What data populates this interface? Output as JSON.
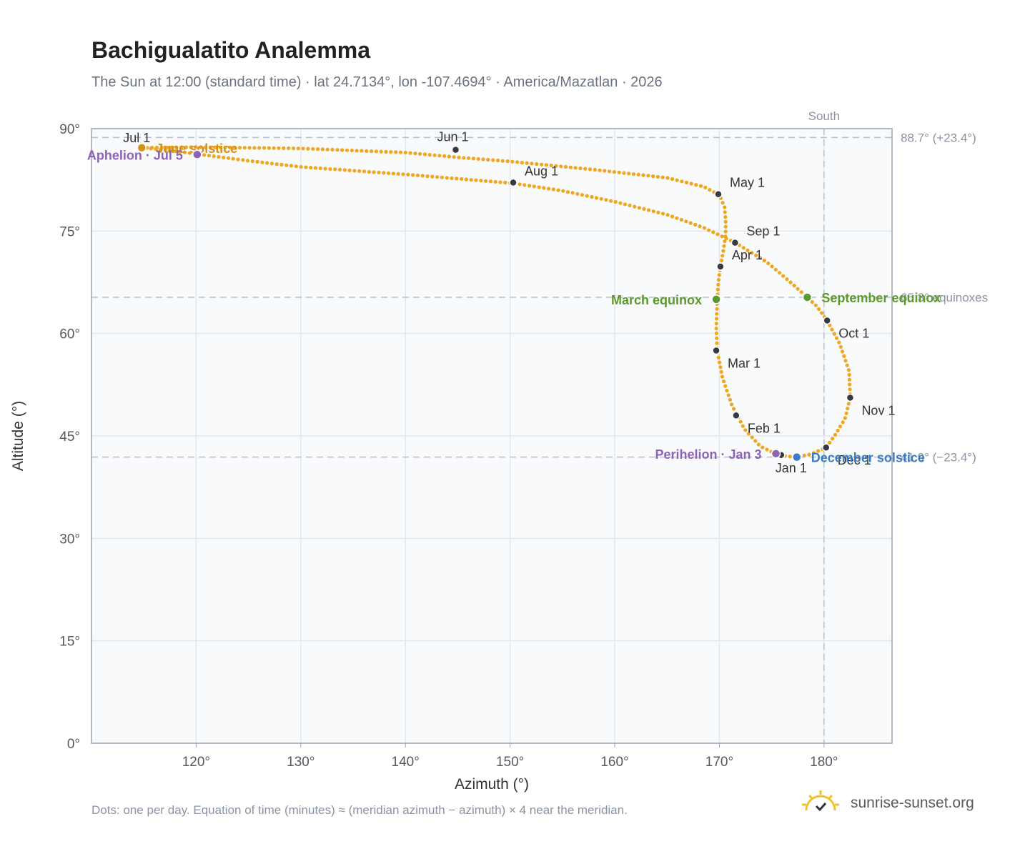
{
  "header": {
    "title": "Bachigualatito Analemma",
    "subtitle": "The Sun at 12:00 (standard time) · lat 24.7134°, lon -107.4694° · America/Mazatlan · 2026"
  },
  "footer": {
    "note": "Dots: one per day. Equation of time (minutes) ≈ (meridian azimuth − azimuth) × 4 near the meridian.",
    "brand": "sunrise-sunset.org"
  },
  "colors": {
    "curve": "#f2a51f",
    "month_marker": "#343a44",
    "equinox": "#5a9a2e",
    "solstice_june": "#d4921a",
    "solstice_december": "#3a7cc6",
    "apsis": "#8e62b5",
    "reference_line": "#b8c0cc",
    "plot_background": "#f8fafc",
    "grid": "#e4e8ee",
    "axis": "#9aa4b2"
  },
  "chart_data": {
    "type": "scatter",
    "title": "Bachigualatito Analemma",
    "xlabel": "Azimuth (°)",
    "ylabel": "Altitude (°)",
    "xlim": [
      110,
      186.5
    ],
    "ylim": [
      0,
      90
    ],
    "x_ticks": [
      {
        "value": 120,
        "label": "120°"
      },
      {
        "value": 130,
        "label": "130°"
      },
      {
        "value": 140,
        "label": "140°"
      },
      {
        "value": 150,
        "label": "150°"
      },
      {
        "value": 160,
        "label": "160°"
      },
      {
        "value": 170,
        "label": "170°"
      },
      {
        "value": 180,
        "label": "180°"
      }
    ],
    "y_ticks": [
      {
        "value": 0,
        "label": "0°"
      },
      {
        "value": 15,
        "label": "15°"
      },
      {
        "value": 30,
        "label": "30°"
      },
      {
        "value": 45,
        "label": "45°"
      },
      {
        "value": 60,
        "label": "60°"
      },
      {
        "value": 75,
        "label": "75°"
      },
      {
        "value": 90,
        "label": "90°"
      }
    ],
    "grid": true,
    "reference_lines": [
      {
        "orientation": "horizontal",
        "value": 88.7,
        "label": "88.7° (+23.4°)"
      },
      {
        "orientation": "horizontal",
        "value": 65.3,
        "label": "65.3° equinoxes"
      },
      {
        "orientation": "horizontal",
        "value": 41.9,
        "label": "41.9° (−23.4°)"
      },
      {
        "orientation": "vertical",
        "value": 180,
        "label": "South"
      }
    ],
    "series": [
      {
        "path": [
          [
            177.2,
            41.9
          ],
          [
            175.6,
            42.2
          ],
          [
            173.9,
            43.5
          ],
          [
            172.4,
            46.0
          ],
          [
            171.2,
            49.5
          ],
          [
            170.3,
            53.5
          ],
          [
            169.8,
            57.4
          ],
          [
            169.7,
            61.0
          ],
          [
            169.8,
            65.0
          ],
          [
            169.9,
            67.5
          ],
          [
            170.1,
            69.8
          ],
          [
            170.4,
            72.3
          ],
          [
            170.6,
            74.5
          ],
          [
            170.6,
            76.5
          ],
          [
            170.5,
            78.5
          ],
          [
            170.0,
            80.3
          ],
          [
            168.5,
            81.5
          ],
          [
            165.0,
            82.8
          ],
          [
            158.0,
            84.0
          ],
          [
            150.0,
            85.2
          ],
          [
            145.0,
            85.8
          ],
          [
            140.0,
            86.5
          ],
          [
            130.0,
            87.1
          ],
          [
            125.0,
            87.2
          ],
          [
            120.0,
            87.3
          ],
          [
            114.8,
            87.2
          ],
          [
            117.0,
            86.9
          ],
          [
            120.0,
            86.3
          ],
          [
            125.0,
            85.3
          ],
          [
            130.0,
            84.4
          ],
          [
            140.0,
            83.3
          ],
          [
            150.3,
            82.0
          ],
          [
            155.0,
            80.9
          ],
          [
            160.0,
            79.3
          ],
          [
            165.0,
            77.4
          ],
          [
            168.5,
            75.5
          ],
          [
            171.5,
            73.3
          ],
          [
            174.5,
            70.5
          ],
          [
            176.5,
            67.9
          ],
          [
            178.4,
            65.3
          ],
          [
            179.3,
            64.0
          ],
          [
            180.3,
            61.9
          ],
          [
            181.5,
            58.5
          ],
          [
            182.4,
            54.5
          ],
          [
            182.5,
            50.6
          ],
          [
            182.0,
            47.5
          ],
          [
            181.0,
            45.0
          ],
          [
            180.2,
            43.3
          ],
          [
            178.7,
            42.3
          ],
          [
            177.2,
            41.9
          ]
        ]
      }
    ],
    "month_markers": [
      {
        "label": "Jan 1",
        "az": 175.9,
        "alt": 42.2,
        "anchor": "below"
      },
      {
        "label": "Feb 1",
        "az": 171.6,
        "alt": 48.0,
        "anchor": "right-below"
      },
      {
        "label": "Mar 1",
        "az": 169.7,
        "alt": 57.5,
        "anchor": "right-below"
      },
      {
        "label": "Apr 1",
        "az": 170.1,
        "alt": 69.8,
        "anchor": "right-above"
      },
      {
        "label": "May 1",
        "az": 169.9,
        "alt": 80.4,
        "anchor": "right-above"
      },
      {
        "label": "Jun 1",
        "az": 144.8,
        "alt": 86.9,
        "anchor": "above"
      },
      {
        "label": "Jul 1",
        "az": 114.8,
        "alt": 87.2,
        "anchor": "left-above"
      },
      {
        "label": "Aug 1",
        "az": 150.3,
        "alt": 82.1,
        "anchor": "right-above"
      },
      {
        "label": "Sep 1",
        "az": 171.5,
        "alt": 73.3,
        "anchor": "right-above"
      },
      {
        "label": "Oct 1",
        "az": 180.3,
        "alt": 61.9,
        "anchor": "right-below"
      },
      {
        "label": "Nov 1",
        "az": 182.5,
        "alt": 50.6,
        "anchor": "right-below"
      },
      {
        "label": "Dec 1",
        "az": 180.2,
        "alt": 43.3,
        "anchor": "right-below"
      }
    ],
    "events": [
      {
        "label": "March equinox",
        "az": 169.7,
        "alt": 65.0,
        "kind": "equinox",
        "anchor": "left"
      },
      {
        "label": "September equinox",
        "az": 178.4,
        "alt": 65.3,
        "kind": "equinox",
        "anchor": "right"
      },
      {
        "label": "June solstice",
        "az": 114.8,
        "alt": 87.2,
        "kind": "solstice_june",
        "anchor": "right"
      },
      {
        "label": "December solstice",
        "az": 177.4,
        "alt": 41.9,
        "kind": "solstice_december",
        "anchor": "right"
      },
      {
        "label": "Aphelion · Jul 5",
        "az": 120.1,
        "alt": 86.2,
        "kind": "apsis",
        "anchor": "left"
      },
      {
        "label": "Perihelion · Jan 3",
        "az": 175.4,
        "alt": 42.4,
        "kind": "apsis",
        "anchor": "left"
      }
    ]
  }
}
